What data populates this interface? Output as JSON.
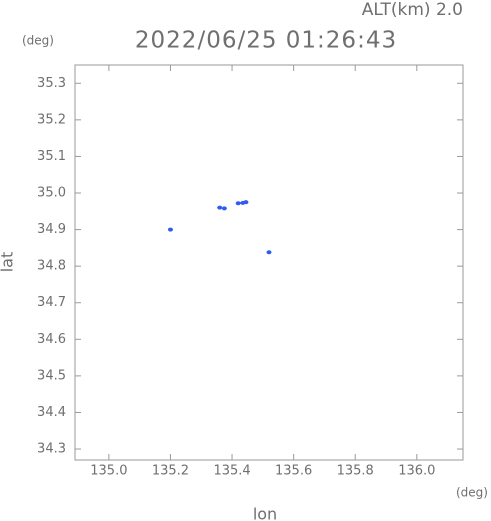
{
  "chart_data": {
    "type": "scatter",
    "title": "2022/06/25 01:26:43",
    "subtitle": "ALT(km) 2.0",
    "x_label": "lon",
    "y_label": "lat",
    "x_unit": "(deg)",
    "y_unit": "(deg)",
    "x": [
      135.2,
      135.36,
      135.375,
      135.42,
      135.435,
      135.445,
      135.52
    ],
    "y": [
      34.9,
      34.96,
      34.958,
      34.972,
      34.973,
      34.975,
      34.838
    ],
    "color": "#2f5cf0",
    "xlim": [
      134.89,
      136.15
    ],
    "ylim": [
      34.27,
      35.35
    ],
    "xticks": [
      {
        "value": 135,
        "label": "135.0"
      },
      135.2,
      135.4,
      135.6,
      135.8,
      {
        "value": 136,
        "label": "136.0"
      }
    ],
    "yticks": [
      34.3,
      34.4,
      34.5,
      34.6,
      34.7,
      34.8,
      34.9,
      {
        "value": 35,
        "label": "35.0"
      },
      35.1,
      35.2,
      35.3
    ]
  }
}
